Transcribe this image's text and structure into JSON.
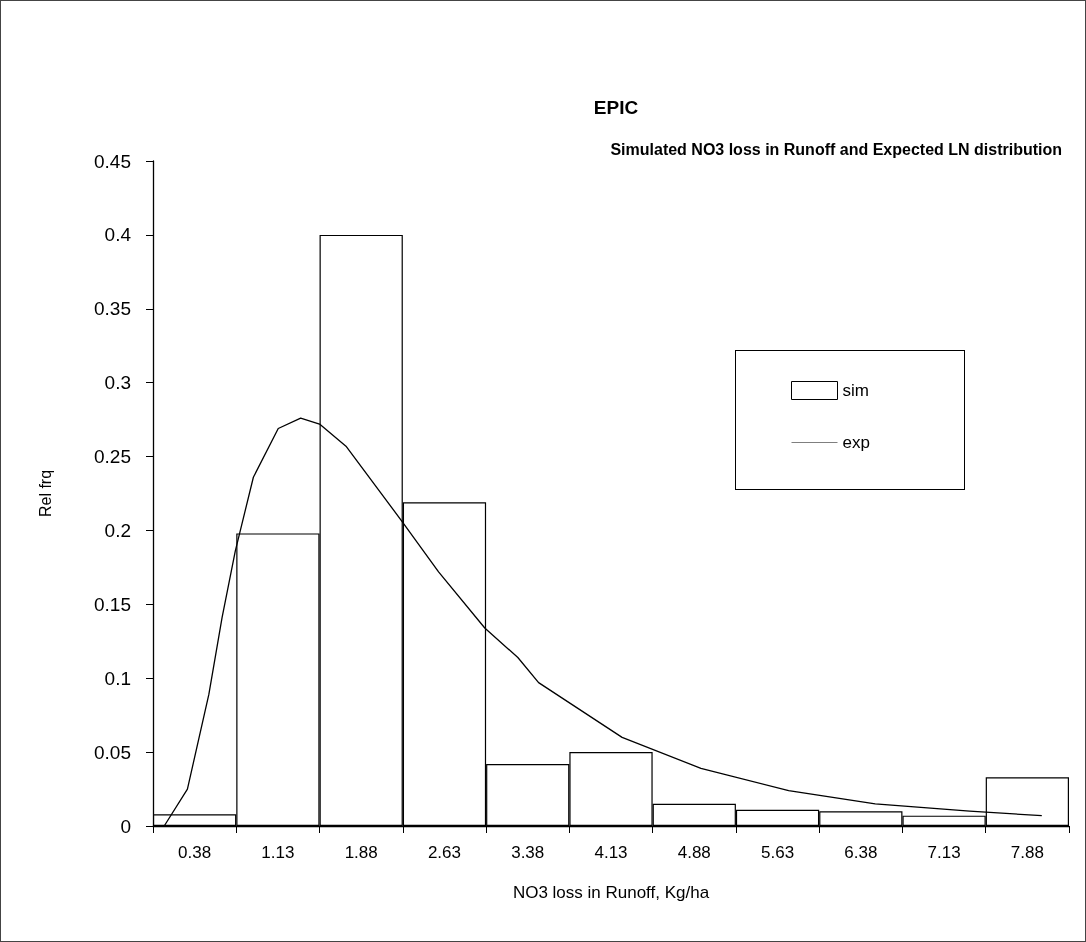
{
  "chart_data": {
    "type": "histogram",
    "title": "EPIC",
    "subtitle": "Simulated NO3 loss in Runoff and Expected LN distribution",
    "xlabel": "NO3 loss in Runoff, Kg/ha",
    "ylabel": "Rel frq",
    "bins": [
      0.005,
      0.755,
      1.505,
      2.255,
      3.005,
      3.755,
      4.505,
      5.255,
      6.005,
      6.755,
      7.505,
      8.255
    ],
    "xlim": [
      0.005,
      8.255
    ],
    "xticks": [
      0.38,
      1.13,
      1.88,
      2.63,
      3.38,
      4.13,
      4.88,
      5.63,
      6.38,
      7.13,
      7.88
    ],
    "ylim": [
      0,
      0.45
    ],
    "yticks": [
      0,
      0.05,
      0.1,
      0.15,
      0.2,
      0.25,
      0.3,
      0.35,
      0.4,
      0.45
    ],
    "series": [
      {
        "name": "sim",
        "color": "#ffffff",
        "values": [
          0.008,
          0.198,
          0.4,
          0.219,
          0.042,
          0.05,
          0.015,
          0.011,
          0.01,
          0.007,
          0.033
        ]
      },
      {
        "name": "exp",
        "type": "line",
        "color": "#000000",
        "x": [
          0.106,
          0.315,
          0.508,
          0.627,
          0.746,
          0.909,
          1.133,
          1.335,
          1.505,
          1.743,
          1.981,
          2.249,
          2.577,
          2.993,
          3.291,
          3.478,
          4.23,
          4.94,
          5.73,
          6.51,
          7.36,
          8.01
        ],
        "values": [
          0,
          0.025,
          0.089,
          0.141,
          0.186,
          0.236,
          0.269,
          0.276,
          0.272,
          0.257,
          0.233,
          0.206,
          0.172,
          0.134,
          0.114,
          0.097,
          0.06,
          0.039,
          0.024,
          0.015,
          0.01,
          0.007
        ]
      }
    ],
    "grid": false,
    "legend": "right",
    "marker": "none",
    "line_style": "solid"
  }
}
